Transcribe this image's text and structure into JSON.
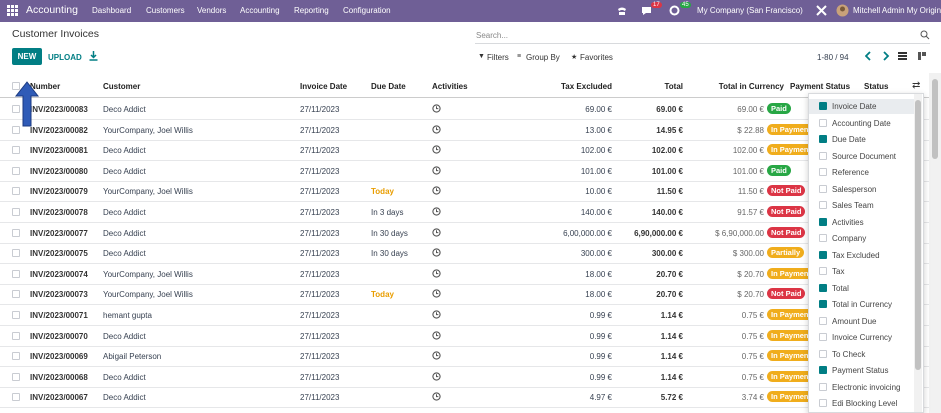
{
  "navbar": {
    "app": "Accounting",
    "menus": [
      "Dashboard",
      "Customers",
      "Vendors",
      "Accounting",
      "Reporting",
      "Configuration"
    ],
    "counters": [
      "17",
      "45"
    ],
    "company": "My Company (San Francisco)",
    "user": "Mitchell Admin My Original Admin"
  },
  "control_panel": {
    "title": "Customer Invoices",
    "new_button": "NEW",
    "upload_button": "UPLOAD",
    "search_placeholder": "Search...",
    "filters": [
      "Filters",
      "Group By",
      "Favorites"
    ],
    "pager": "1-80 / 94"
  },
  "table": {
    "columns": [
      "Number",
      "Customer",
      "Invoice Date",
      "Due Date",
      "Activities",
      "Tax Excluded",
      "Total",
      "Total in Currency",
      "Payment Status",
      "Status"
    ],
    "rows": [
      {
        "number": "INV/2023/00083",
        "customer": "Deco Addict",
        "invoice_date": "27/11/2023",
        "due_date": null,
        "due_highlight": false,
        "tax_excluded": "69.00 €",
        "total": "69.00 €",
        "total_currency": "69.00 €",
        "payment_status": "Paid",
        "badge_color": "#28a745"
      },
      {
        "number": "INV/2023/00082",
        "customer": "YourCompany, Joel Willis",
        "invoice_date": "27/11/2023",
        "due_date": null,
        "due_highlight": false,
        "tax_excluded": "13.00 €",
        "total": "14.95 €",
        "total_currency": "$ 22.88",
        "payment_status": "In Payment",
        "badge_color": "#f0ad1c"
      },
      {
        "number": "INV/2023/00081",
        "customer": "Deco Addict",
        "invoice_date": "27/11/2023",
        "due_date": null,
        "due_highlight": false,
        "tax_excluded": "102.00 €",
        "total": "102.00 €",
        "total_currency": "102.00 €",
        "payment_status": "In Payment",
        "badge_color": "#f0ad1c"
      },
      {
        "number": "INV/2023/00080",
        "customer": "Deco Addict",
        "invoice_date": "27/11/2023",
        "due_date": null,
        "due_highlight": false,
        "tax_excluded": "101.00 €",
        "total": "101.00 €",
        "total_currency": "101.00 €",
        "payment_status": "Paid",
        "badge_color": "#28a745"
      },
      {
        "number": "INV/2023/00079",
        "customer": "YourCompany, Joel Willis",
        "invoice_date": "27/11/2023",
        "due_date": "Today",
        "due_highlight": true,
        "tax_excluded": "10.00 €",
        "total": "11.50 €",
        "total_currency": "11.50 €",
        "payment_status": "Not Paid",
        "badge_color": "#dc3545"
      },
      {
        "number": "INV/2023/00078",
        "customer": "Deco Addict",
        "invoice_date": "27/11/2023",
        "due_date": "In 3 days",
        "due_highlight": false,
        "tax_excluded": "140.00 €",
        "total": "140.00 €",
        "total_currency": "91.57 €",
        "payment_status": "Not Paid",
        "badge_color": "#dc3545"
      },
      {
        "number": "INV/2023/00077",
        "customer": "Deco Addict",
        "invoice_date": "27/11/2023",
        "due_date": "In 30 days",
        "due_highlight": false,
        "tax_excluded": "6,00,000.00 €",
        "total": "6,90,000.00 €",
        "total_currency": "$ 6,90,000.00",
        "payment_status": "Not Paid",
        "badge_color": "#dc3545"
      },
      {
        "number": "INV/2023/00075",
        "customer": "Deco Addict",
        "invoice_date": "27/11/2023",
        "due_date": "In 30 days",
        "due_highlight": false,
        "tax_excluded": "300.00 €",
        "total": "300.00 €",
        "total_currency": "$ 300.00",
        "payment_status": "Partially",
        "badge_color": "#f0ad1c"
      },
      {
        "number": "INV/2023/00074",
        "customer": "YourCompany, Joel Willis",
        "invoice_date": "27/11/2023",
        "due_date": null,
        "due_highlight": false,
        "tax_excluded": "18.00 €",
        "total": "20.70 €",
        "total_currency": "$ 20.70",
        "payment_status": "In Payment",
        "badge_color": "#f0ad1c"
      },
      {
        "number": "INV/2023/00073",
        "customer": "YourCompany, Joel Willis",
        "invoice_date": "27/11/2023",
        "due_date": "Today",
        "due_highlight": true,
        "tax_excluded": "18.00 €",
        "total": "20.70 €",
        "total_currency": "$ 20.70",
        "payment_status": "Not Paid",
        "badge_color": "#dc3545"
      },
      {
        "number": "INV/2023/00071",
        "customer": "hemant gupta",
        "invoice_date": "27/11/2023",
        "due_date": null,
        "due_highlight": false,
        "tax_excluded": "0.99 €",
        "total": "1.14 €",
        "total_currency": "0.75 €",
        "payment_status": "In Payment",
        "badge_color": "#f0ad1c"
      },
      {
        "number": "INV/2023/00070",
        "customer": "Deco Addict",
        "invoice_date": "27/11/2023",
        "due_date": null,
        "due_highlight": false,
        "tax_excluded": "0.99 €",
        "total": "1.14 €",
        "total_currency": "0.75 €",
        "payment_status": "In Payment",
        "badge_color": "#f0ad1c"
      },
      {
        "number": "INV/2023/00069",
        "customer": "Abigail Peterson",
        "invoice_date": "27/11/2023",
        "due_date": null,
        "due_highlight": false,
        "tax_excluded": "0.99 €",
        "total": "1.14 €",
        "total_currency": "0.75 €",
        "payment_status": "In Payment",
        "badge_color": "#f0ad1c"
      },
      {
        "number": "INV/2023/00068",
        "customer": "Deco Addict",
        "invoice_date": "27/11/2023",
        "due_date": null,
        "due_highlight": false,
        "tax_excluded": "0.99 €",
        "total": "1.14 €",
        "total_currency": "0.75 €",
        "payment_status": "In Payment",
        "badge_color": "#f0ad1c"
      },
      {
        "number": "INV/2023/00067",
        "customer": "Deco Addict",
        "invoice_date": "27/11/2023",
        "due_date": null,
        "due_highlight": false,
        "tax_excluded": "4.97 €",
        "total": "5.72 €",
        "total_currency": "3.74 €",
        "payment_status": "In Payment",
        "badge_color": "#f0ad1c"
      }
    ]
  },
  "column_menu": [
    {
      "label": "Invoice Date",
      "checked": true
    },
    {
      "label": "Accounting Date",
      "checked": false
    },
    {
      "label": "Due Date",
      "checked": true
    },
    {
      "label": "Source Document",
      "checked": false
    },
    {
      "label": "Reference",
      "checked": false
    },
    {
      "label": "Salesperson",
      "checked": false
    },
    {
      "label": "Sales Team",
      "checked": false
    },
    {
      "label": "Activities",
      "checked": true
    },
    {
      "label": "Company",
      "checked": false
    },
    {
      "label": "Tax Excluded",
      "checked": true
    },
    {
      "label": "Tax",
      "checked": false
    },
    {
      "label": "Total",
      "checked": true
    },
    {
      "label": "Total in Currency",
      "checked": true
    },
    {
      "label": "Amount Due",
      "checked": false
    },
    {
      "label": "Invoice Currency",
      "checked": false
    },
    {
      "label": "To Check",
      "checked": false
    },
    {
      "label": "Payment Status",
      "checked": true
    },
    {
      "label": "Electronic invoicing",
      "checked": false
    },
    {
      "label": "Edi Blocking Level",
      "checked": false
    }
  ]
}
